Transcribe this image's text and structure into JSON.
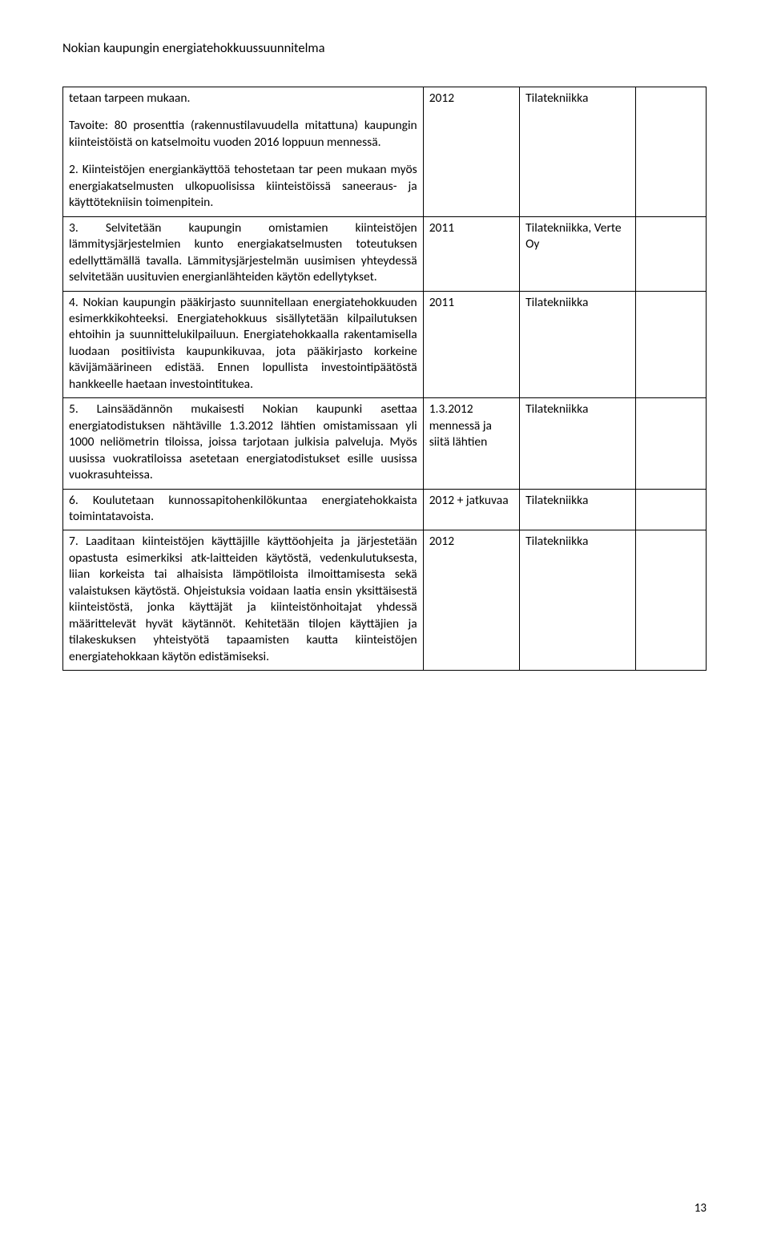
{
  "header": {
    "title": "Nokian kaupungin energiatehokkuussuunnitelma"
  },
  "page_number": "13",
  "rows": [
    {
      "col1_paragraphs": [
        "tetaan tarpeen mukaan.",
        "Tavoite: 80 prosenttia (rakennustilavuudella mitattuna) kaupungin kiinteistöistä on katselmoitu vuoden 2016 loppuun mennessä.",
        "2. Kiinteistöjen energiankäyttöä tehostetaan tar peen mukaan myös energiakatselmusten ulkopuolisissa kiinteistöissä saneeraus- ja käyttötekniisin toimenpitein."
      ],
      "col2": "2012",
      "col3": "Tilatekniikka",
      "col4": ""
    },
    {
      "col1_paragraphs": [
        "3. Selvitetään kaupungin omistamien kiinteistöjen lämmitysjärjestelmien kunto energiakatselmusten toteutuksen edellyttämällä tavalla. Lämmitysjärjestelmän uusimisen yhteydessä selvitetään uusituvien energianlähteiden käytön edellytykset."
      ],
      "col2": "2011",
      "col3": "Tilatekniikka, Verte Oy",
      "col4": ""
    },
    {
      "col1_paragraphs": [
        "4. Nokian kaupungin pääkirjasto suunnitellaan energiatehokkuuden esimerkkikohteeksi. Energiatehokkuus sisällytetään kilpailutuksen ehtoihin ja suunnittelukilpailuun. Energiatehokkaalla rakentamisella luodaan positiivista kaupunkikuvaa, jota pääkirjasto korkeine kävijämäärineen edistää. Ennen lopullista investointipäätöstä hankkeelle haetaan investointitukea."
      ],
      "col2": "2011",
      "col3": "Tilatekniikka",
      "col4": ""
    },
    {
      "col1_paragraphs": [
        "5. Lainsäädännön mukaisesti Nokian kaupunki asettaa energiatodistuksen nähtäville 1.3.2012 lähtien omistamissaan yli 1000 neliömetrin tiloissa, joissa tarjotaan julkisia palveluja. Myös uusissa vuokratiloissa asetetaan energiatodistukset esille uusissa vuokrasuhteissa."
      ],
      "col2": "1.3.2012 mennessä ja siitä lähtien",
      "col3": "Tilatekniikka",
      "col4": ""
    },
    {
      "col1_paragraphs": [
        "6. Koulutetaan kunnossapitohenkilökuntaa energiatehokkaista toimintatavoista."
      ],
      "col2": "2012 + jatkuvaa",
      "col3": "Tilatekniikka",
      "col4": ""
    },
    {
      "col1_paragraphs": [
        "7. Laaditaan kiinteistöjen käyttäjille käyttöohjeita ja järjestetään opastusta esimerkiksi atk-laitteiden käytöstä, vedenkulutuksesta, liian korkeista tai alhaisista lämpötiloista ilmoittamisesta sekä valaistuksen käytöstä. Ohjeistuksia voidaan laatia ensin yksittäisestä kiinteistöstä, jonka käyttäjät ja kiinteistönhoitajat yhdessä määrittelevät hyvät käytännöt. Kehitetään tilojen käyttäjien ja tilakeskuksen yhteistyötä tapaamisten kautta kiinteistöjen energiatehokkaan käytön edistämiseksi."
      ],
      "col2": "2012",
      "col3": "Tilatekniikka",
      "col4": ""
    }
  ]
}
